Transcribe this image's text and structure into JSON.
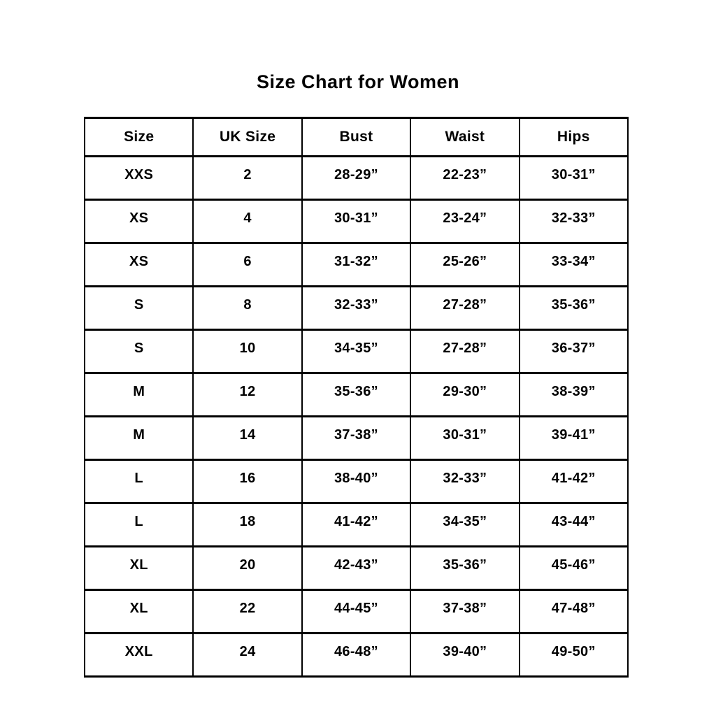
{
  "chart_data": {
    "type": "table",
    "title": "Size Chart for Women",
    "columns": [
      "Size",
      "UK Size",
      "Bust",
      "Waist",
      "Hips"
    ],
    "rows": [
      [
        "XXS",
        "2",
        "28-29”",
        "22-23”",
        "30-31”"
      ],
      [
        "XS",
        "4",
        "30-31”",
        "23-24”",
        "32-33”"
      ],
      [
        "XS",
        "6",
        "31-32”",
        "25-26”",
        "33-34”"
      ],
      [
        "S",
        "8",
        "32-33”",
        "27-28”",
        "35-36”"
      ],
      [
        "S",
        "10",
        "34-35”",
        "27-28”",
        "36-37”"
      ],
      [
        "M",
        "12",
        "35-36”",
        "29-30”",
        "38-39”"
      ],
      [
        "M",
        "14",
        "37-38”",
        "30-31”",
        "39-41”"
      ],
      [
        "L",
        "16",
        "38-40”",
        "32-33”",
        "41-42”"
      ],
      [
        "L",
        "18",
        "41-42”",
        "34-35”",
        "43-44”"
      ],
      [
        "XL",
        "20",
        "42-43”",
        "35-36”",
        "45-46”"
      ],
      [
        "XL",
        "22",
        "44-45”",
        "37-38”",
        "47-48”"
      ],
      [
        "XXL",
        "24",
        "46-48”",
        "39-40”",
        "49-50”"
      ]
    ],
    "layout": {
      "legend": "none",
      "grid": "all-borders",
      "header_row": true
    }
  },
  "colors": {
    "text": "#000000",
    "border": "#000000",
    "background": "#ffffff"
  }
}
